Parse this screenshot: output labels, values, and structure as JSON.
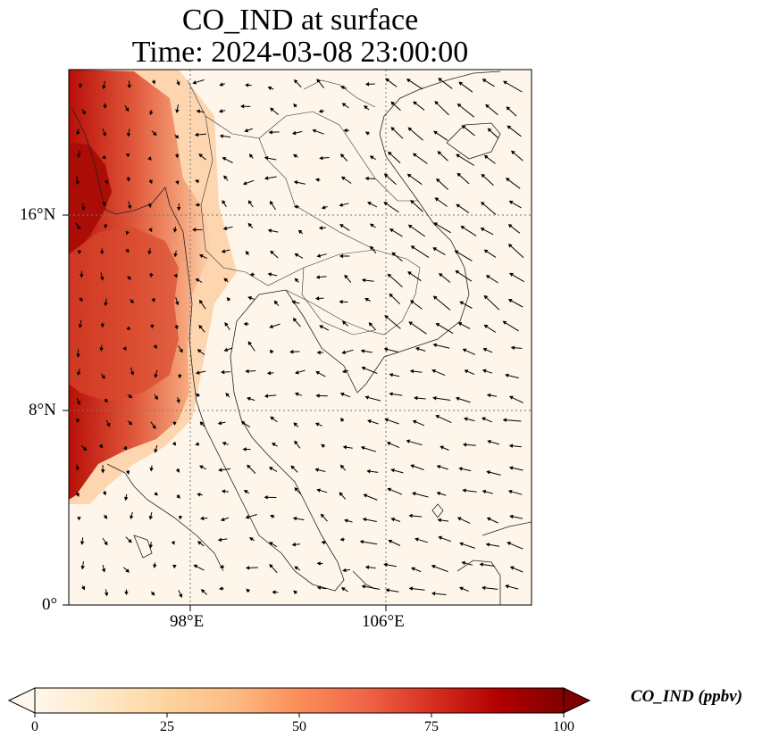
{
  "title": {
    "line1": "CO_IND at surface",
    "line2": "Time: 2024-03-08 23:00:00"
  },
  "map": {
    "lat_labels": [
      "16°N",
      "8°N",
      "0°"
    ],
    "lon_labels": [
      "98°E",
      "106°E"
    ],
    "field": "CO_IND",
    "colormap": "OrRd"
  },
  "colorbar": {
    "label": "CO_IND (ppbv)",
    "ticks": [
      "0",
      "25",
      "50",
      "75",
      "100"
    ],
    "range": [
      0,
      100
    ],
    "extend": "both",
    "colors": [
      "#fff7ec",
      "#fee8c8",
      "#fdd49e",
      "#fdbb84",
      "#fc8d59",
      "#ef6548",
      "#d7301f",
      "#b30000",
      "#7f0000"
    ]
  }
}
